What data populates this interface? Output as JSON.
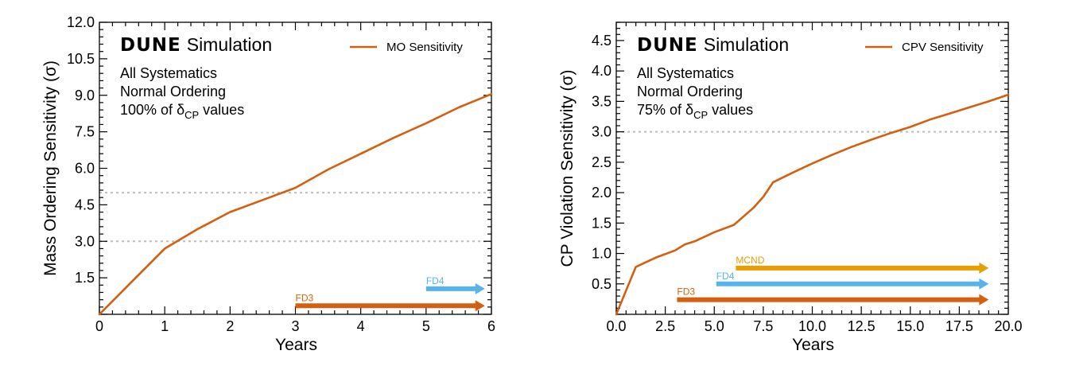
{
  "colors": {
    "sensitivity_line": "#d45f0e",
    "fd3": "#d45f0e",
    "fd4": "#56b4e9",
    "mcnd": "#e69f00",
    "reference_line": "#bcbcbc"
  },
  "chart_data": [
    {
      "type": "line",
      "branding": {
        "dune": "DUNE",
        "simulation": "Simulation"
      },
      "info_lines": [
        "All Systematics",
        "Normal Ordering"
      ],
      "fraction_text": {
        "prefix": "100% of ",
        "delta": "δ",
        "subscript": "CP",
        "suffix": " values"
      },
      "xlabel": "Years",
      "ylabel": "Mass Ordering Sensitivity (σ)",
      "xlim": [
        0,
        6
      ],
      "ylim": [
        0,
        12
      ],
      "xticks": [
        0,
        1,
        2,
        3,
        4,
        5,
        6
      ],
      "xtick_labels": [
        "0",
        "1",
        "2",
        "3",
        "4",
        "5",
        "6"
      ],
      "yticks": [
        1.5,
        3.0,
        4.5,
        6.0,
        7.5,
        9.0,
        10.5,
        12.0
      ],
      "ytick_labels": [
        "1.5",
        "3.0",
        "4.5",
        "6.0",
        "7.5",
        "9.0",
        "10.5",
        "12.0"
      ],
      "reference_lines": [
        3.0,
        5.0
      ],
      "legend": {
        "label": "MO Sensitivity",
        "position": "top-right"
      },
      "series": [
        {
          "name": "MO Sensitivity",
          "x": [
            0,
            0.5,
            1.0,
            1.5,
            2.0,
            2.5,
            3.0,
            3.5,
            4.0,
            4.5,
            5.0,
            5.5,
            6.0
          ],
          "y": [
            0.0,
            1.35,
            2.7,
            3.5,
            4.2,
            4.7,
            5.2,
            5.95,
            6.6,
            7.25,
            7.85,
            8.5,
            9.05
          ]
        }
      ],
      "arrows": [
        {
          "label": "FD3",
          "start": 3.0,
          "end": 5.9,
          "y": 0.35,
          "color_key": "fd3"
        },
        {
          "label": "FD4",
          "start": 5.0,
          "end": 5.9,
          "y": 1.05,
          "color_key": "fd4"
        }
      ]
    },
    {
      "type": "line",
      "branding": {
        "dune": "DUNE",
        "simulation": "Simulation"
      },
      "info_lines": [
        "All Systematics",
        "Normal Ordering"
      ],
      "fraction_text": {
        "prefix": "75% of ",
        "delta": "δ",
        "subscript": "CP",
        "suffix": " values"
      },
      "xlabel": "Years",
      "ylabel": "CP Violation Sensitivity (σ)",
      "xlim": [
        0,
        20
      ],
      "ylim": [
        0,
        4.8
      ],
      "xticks": [
        0,
        2.5,
        5,
        7.5,
        10,
        12.5,
        15,
        17.5,
        20
      ],
      "xtick_labels": [
        "0.0",
        "2.5",
        "5.0",
        "7.5",
        "10.0",
        "12.5",
        "15.0",
        "17.5",
        "20.0"
      ],
      "yticks": [
        0.5,
        1.0,
        1.5,
        2.0,
        2.5,
        3.0,
        3.5,
        4.0,
        4.5
      ],
      "ytick_labels": [
        "0.5",
        "1.0",
        "1.5",
        "2.0",
        "2.5",
        "3.0",
        "3.5",
        "4.0",
        "4.5"
      ],
      "reference_lines": [
        3.0
      ],
      "legend": {
        "label": "CPV Sensitivity",
        "position": "top-right"
      },
      "series": [
        {
          "name": "CPV Sensitivity",
          "x": [
            0,
            1,
            2,
            3,
            3.5,
            4,
            5,
            6,
            7,
            7.5,
            8,
            9,
            10,
            11,
            12,
            13,
            14,
            15,
            16,
            17,
            18,
            19,
            20
          ],
          "y": [
            0.0,
            0.78,
            0.93,
            1.05,
            1.15,
            1.2,
            1.35,
            1.47,
            1.75,
            1.93,
            2.17,
            2.33,
            2.48,
            2.62,
            2.75,
            2.87,
            2.98,
            3.08,
            3.2,
            3.3,
            3.4,
            3.5,
            3.61
          ]
        }
      ],
      "arrows": [
        {
          "label": "FD3",
          "start": 3.1,
          "end": 19.0,
          "y": 0.24,
          "color_key": "fd3"
        },
        {
          "label": "FD4",
          "start": 5.1,
          "end": 19.0,
          "y": 0.5,
          "color_key": "fd4"
        },
        {
          "label": "MCND",
          "start": 6.1,
          "end": 19.0,
          "y": 0.76,
          "color_key": "mcnd"
        }
      ]
    }
  ]
}
